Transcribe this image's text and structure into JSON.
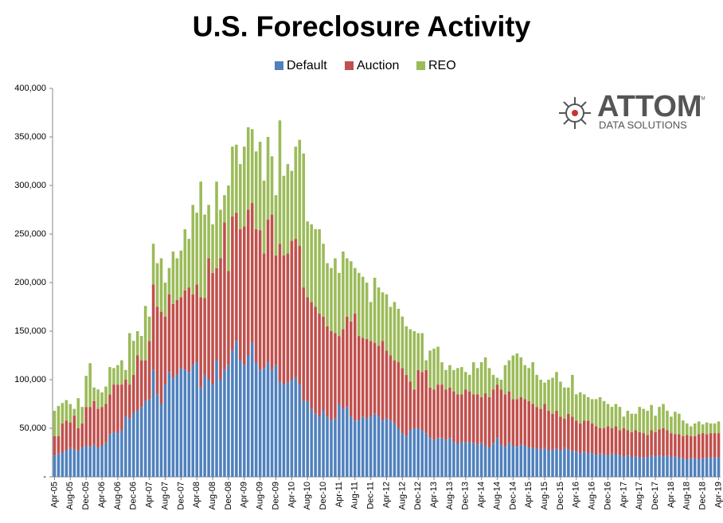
{
  "chart_data": {
    "type": "stacked_bar",
    "title": "U.S. Foreclosure Activity",
    "logo": {
      "name": "ATTOM",
      "mark": "TM",
      "tagline": "DATA SOLUTIONS"
    },
    "legend": "top",
    "grid": false,
    "ylim": [
      0,
      400000
    ],
    "yticks": [
      {
        "value": 0,
        "label": "-"
      },
      {
        "value": 50000,
        "label": "50,000"
      },
      {
        "value": 100000,
        "label": "100,000"
      },
      {
        "value": 150000,
        "label": "150,000"
      },
      {
        "value": 200000,
        "label": "200,000"
      },
      {
        "value": 250000,
        "label": "250,000"
      },
      {
        "value": 300000,
        "label": "300,000"
      },
      {
        "value": 350000,
        "label": "350,000"
      },
      {
        "value": 400000,
        "label": "400,000"
      }
    ],
    "categories": [
      "Apr-05",
      null,
      null,
      null,
      "Aug-05",
      null,
      null,
      null,
      "Dec-05",
      null,
      null,
      null,
      "Apr-06",
      null,
      null,
      null,
      "Aug-06",
      null,
      null,
      null,
      "Dec-06",
      null,
      null,
      null,
      "Apr-07",
      null,
      null,
      null,
      "Aug-07",
      null,
      null,
      null,
      "Dec-07",
      null,
      null,
      null,
      "Apr-08",
      null,
      null,
      null,
      "Aug-08",
      null,
      null,
      null,
      "Dec-08",
      null,
      null,
      null,
      "Apr-09",
      null,
      null,
      null,
      "Aug-09",
      null,
      null,
      null,
      "Dec-09",
      null,
      null,
      null,
      "Apr-10",
      null,
      null,
      null,
      "Aug-10",
      null,
      null,
      null,
      "Dec-10",
      null,
      null,
      null,
      "Apr-11",
      null,
      null,
      null,
      "Aug-11",
      null,
      null,
      null,
      "Dec-11",
      null,
      null,
      null,
      "Apr-12",
      null,
      null,
      null,
      "Aug-12",
      null,
      null,
      null,
      "Dec-12",
      null,
      null,
      null,
      "Apr-13",
      null,
      null,
      null,
      "Aug-13",
      null,
      null,
      null,
      "Dec-13",
      null,
      null,
      null,
      "Apr-14",
      null,
      null,
      null,
      "Aug-14",
      null,
      null,
      null,
      "Dec-14",
      null,
      null,
      null,
      "Apr-15",
      null,
      null,
      null,
      "Aug-15",
      null,
      null,
      null,
      "Dec-15",
      null,
      null,
      null,
      "Apr-16",
      null,
      null,
      null,
      "Aug-16",
      null,
      null,
      null,
      "Dec-16",
      null,
      null,
      null,
      "Apr-17",
      null,
      null,
      null,
      "Aug-17",
      null,
      null,
      null,
      "Dec-17",
      null,
      null,
      null,
      "Apr-18",
      null,
      null,
      null,
      "Aug-18",
      null,
      null,
      null,
      "Dec-18",
      null,
      null,
      null,
      "Apr-19"
    ],
    "series": [
      {
        "name": "Default",
        "color": "#4f81bd",
        "values": [
          22000,
          24000,
          25000,
          27000,
          30000,
          28000,
          27000,
          30000,
          32000,
          31000,
          33000,
          30000,
          32000,
          35000,
          44000,
          46000,
          45000,
          48000,
          62000,
          60000,
          66000,
          68000,
          72000,
          78000,
          80000,
          110000,
          85000,
          75000,
          95000,
          108000,
          102000,
          105000,
          112000,
          110000,
          108000,
          115000,
          118000,
          92000,
          105000,
          100000,
          95000,
          120000,
          100000,
          110000,
          115000,
          130000,
          140000,
          120000,
          115000,
          125000,
          138000,
          118000,
          110000,
          112000,
          118000,
          110000,
          115000,
          98000,
          95000,
          97000,
          100000,
          102000,
          95000,
          78000,
          78000,
          70000,
          65000,
          62000,
          68000,
          62000,
          58000,
          60000,
          75000,
          70000,
          72000,
          62000,
          58000,
          58000,
          62000,
          60000,
          62000,
          65000,
          62000,
          58000,
          60000,
          58000,
          55000,
          50000,
          45000,
          42000,
          48000,
          50000,
          50000,
          48000,
          45000,
          40000,
          38000,
          40000,
          40000,
          38000,
          40000,
          36000,
          34000,
          36000,
          35000,
          36000,
          35000,
          33000,
          35000,
          32000,
          30000,
          35000,
          40000,
          33000,
          31000,
          35000,
          32000,
          31000,
          33000,
          32000,
          30000,
          30000,
          29000,
          28000,
          30000,
          27000,
          28000,
          29000,
          27000,
          30000,
          28000,
          27000,
          26000,
          24000,
          26000,
          24000,
          25000,
          22000,
          24000,
          23000,
          22000,
          24000,
          23000,
          22000,
          21000,
          22000,
          20000,
          21000,
          20000,
          20000,
          20000,
          22000,
          21000,
          22000,
          21000,
          22000,
          20000,
          21000,
          20000,
          19000,
          18000,
          19000,
          19000,
          18000,
          19000,
          19000,
          20000,
          20000,
          20000
        ]
      },
      {
        "name": "Auction",
        "color": "#c0504d",
        "values": [
          20000,
          18000,
          30000,
          31000,
          26000,
          35000,
          23000,
          25000,
          40000,
          41000,
          45000,
          40000,
          40000,
          40000,
          41000,
          49000,
          50000,
          47000,
          38000,
          35000,
          39000,
          57000,
          48000,
          42000,
          60000,
          88000,
          90000,
          95000,
          70000,
          80000,
          76000,
          77000,
          73000,
          82000,
          87000,
          73000,
          80000,
          93000,
          79000,
          125000,
          115000,
          95000,
          125000,
          152000,
          97000,
          138000,
          132000,
          135000,
          143000,
          150000,
          144000,
          137000,
          144000,
          118000,
          147000,
          160000,
          113000,
          142000,
          133000,
          133000,
          143000,
          143000,
          143000,
          117000,
          107000,
          110000,
          110000,
          106000,
          97000,
          93000,
          92000,
          88000,
          70000,
          82000,
          93000,
          98000,
          110000,
          87000,
          81000,
          82000,
          78000,
          73000,
          73000,
          82000,
          70000,
          67000,
          65000,
          68000,
          67000,
          63000,
          50000,
          40000,
          60000,
          60000,
          65000,
          52000,
          52000,
          55000,
          55000,
          52000,
          52000,
          52000,
          51000,
          49000,
          55000,
          52000,
          50000,
          52000,
          47000,
          54000,
          52000,
          55000,
          55000,
          57000,
          54000,
          53000,
          48000,
          49000,
          49000,
          48000,
          48000,
          45000,
          43000,
          42000,
          45000,
          41000,
          37000,
          39000,
          35000,
          30000,
          37000,
          35000,
          32000,
          31000,
          32000,
          34000,
          30000,
          30000,
          26000,
          27000,
          30000,
          26000,
          29000,
          26000,
          29000,
          26000,
          26000,
          27000,
          26000,
          25000,
          23000,
          26000,
          25000,
          27000,
          29000,
          26000,
          25000,
          23000,
          24000,
          23000,
          25000,
          23000,
          23000,
          26000,
          26000,
          25000,
          25000,
          25000,
          25000
        ]
      },
      {
        "name": "REO",
        "color": "#9bbb59",
        "values": [
          26000,
          31000,
          21000,
          21000,
          19000,
          7000,
          31000,
          17000,
          32000,
          45000,
          14000,
          20000,
          15000,
          18000,
          28000,
          17000,
          20000,
          25000,
          10000,
          53000,
          35000,
          25000,
          25000,
          56000,
          25000,
          42000,
          45000,
          55000,
          35000,
          27000,
          54000,
          43000,
          48000,
          63000,
          50000,
          92000,
          74000,
          119000,
          86000,
          55000,
          50000,
          89000,
          50000,
          28000,
          88000,
          72000,
          70000,
          67000,
          82000,
          85000,
          76000,
          80000,
          91000,
          75000,
          85000,
          60000,
          62000,
          127000,
          82000,
          92000,
          72000,
          95000,
          109000,
          138000,
          78000,
          80000,
          80000,
          87000,
          75000,
          65000,
          65000,
          77000,
          65000,
          80000,
          60000,
          62000,
          47000,
          65000,
          63000,
          58000,
          40000,
          67000,
          60000,
          50000,
          58000,
          50000,
          60000,
          55000,
          53000,
          50000,
          54000,
          60000,
          38000,
          40000,
          10000,
          38000,
          42000,
          39000,
          23000,
          20000,
          23000,
          22000,
          27000,
          28000,
          18000,
          17000,
          33000,
          27000,
          36000,
          37000,
          30000,
          15000,
          7000,
          10000,
          30000,
          32000,
          45000,
          47000,
          41000,
          35000,
          34000,
          43000,
          33000,
          30000,
          22000,
          32000,
          37000,
          40000,
          36000,
          32000,
          27000,
          43000,
          27000,
          32000,
          27000,
          24000,
          25000,
          28000,
          32000,
          28000,
          23000,
          22000,
          23000,
          24000,
          12000,
          20000,
          19000,
          17000,
          26000,
          25000,
          25000,
          26000,
          17000,
          23000,
          25000,
          20000,
          17000,
          23000,
          21000,
          16000,
          12000,
          10000,
          13000,
          13000,
          9000,
          12000,
          10000,
          10000,
          12000
        ]
      }
    ]
  }
}
